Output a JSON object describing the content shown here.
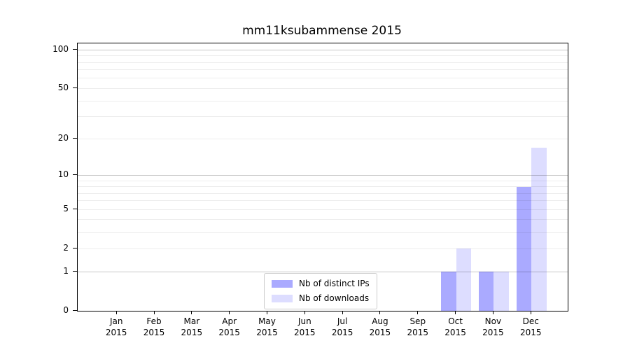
{
  "chart_data": {
    "type": "bar",
    "title": "mm11ksubammense 2015",
    "categories": [
      {
        "label": "Jan",
        "sublabel": "2015"
      },
      {
        "label": "Feb",
        "sublabel": "2015"
      },
      {
        "label": "Mar",
        "sublabel": "2015"
      },
      {
        "label": "Apr",
        "sublabel": "2015"
      },
      {
        "label": "May",
        "sublabel": "2015"
      },
      {
        "label": "Jun",
        "sublabel": "2015"
      },
      {
        "label": "Jul",
        "sublabel": "2015"
      },
      {
        "label": "Aug",
        "sublabel": "2015"
      },
      {
        "label": "Sep",
        "sublabel": "2015"
      },
      {
        "label": "Oct",
        "sublabel": "2015"
      },
      {
        "label": "Nov",
        "sublabel": "2015"
      },
      {
        "label": "Dec",
        "sublabel": "2015"
      }
    ],
    "series": [
      {
        "name": "Nb of distinct IPs",
        "key": "distinct-ips",
        "color": "#aaaaff",
        "values": [
          0,
          0,
          0,
          0,
          0,
          0,
          0,
          0,
          0,
          1,
          1,
          8
        ]
      },
      {
        "name": "Nb of downloads",
        "key": "downloads",
        "color": "#ddddff",
        "values": [
          0,
          0,
          0,
          0,
          0,
          0,
          0,
          0,
          0,
          2,
          1,
          17
        ]
      }
    ],
    "y_axis": {
      "scale": "log1p",
      "ticks": [
        100,
        50,
        20,
        10,
        5,
        2,
        1,
        0
      ],
      "major_gridlines": [
        100,
        10,
        1
      ],
      "minor_gridlines": [
        90,
        80,
        70,
        60,
        50,
        40,
        30,
        20,
        9,
        8,
        7,
        6,
        5,
        4,
        3,
        2
      ],
      "ylim": [
        0,
        112
      ]
    },
    "legend_position": "lower center",
    "grid": true
  }
}
